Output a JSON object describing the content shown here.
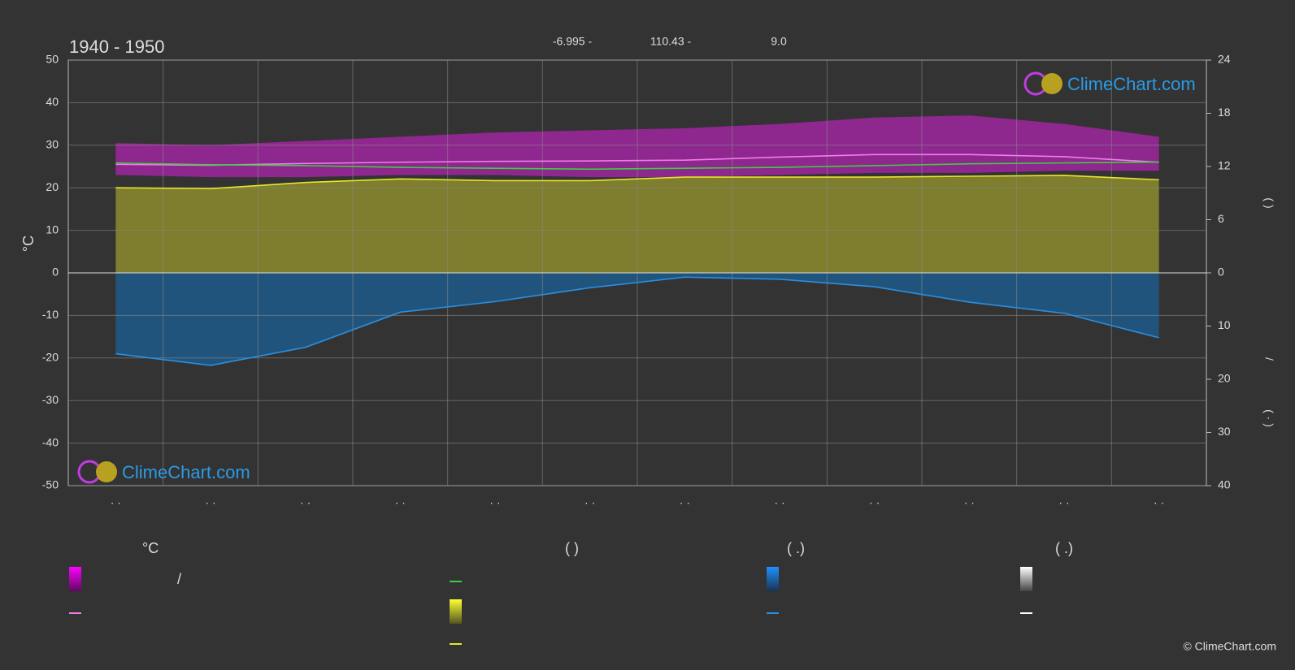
{
  "header": {
    "title": "1940 - 1950",
    "lat": "-6.995 -",
    "lon": "110.43 -",
    "elev": "9.0"
  },
  "chart_data": {
    "type": "line",
    "ylabel": "°C",
    "y2labels": [
      "(  )",
      "/",
      "( · )"
    ],
    "categories": [
      "· ·",
      "· ·",
      "· ·",
      "· ·",
      "· ·",
      "· ·",
      "· ·",
      "· ·",
      "· ·",
      "· ·",
      "· ·",
      "· ·"
    ],
    "ylim": [
      -50,
      50
    ],
    "yticks": [
      50,
      40,
      30,
      20,
      10,
      0,
      -10,
      -20,
      -30,
      -40,
      -50
    ],
    "y2lim": [
      0,
      24
    ],
    "y2ticks": [
      24,
      18,
      12,
      6,
      0
    ],
    "y3lim": [
      0,
      40
    ],
    "y3ticks": [
      10,
      20,
      30,
      40
    ],
    "grid": true,
    "temp_band": {
      "color": "#d81ed8",
      "high": [
        30.5,
        30,
        31,
        32,
        33,
        33.5,
        34,
        35,
        36.5,
        37,
        35,
        32
      ],
      "low": [
        23,
        22.5,
        22.5,
        23,
        23,
        22.5,
        22.5,
        23,
        23.5,
        23.5,
        24,
        24
      ]
    },
    "series": [
      {
        "color": "#f07cf0",
        "axis": "y",
        "values": [
          25.5,
          25.3,
          25.7,
          26,
          26.2,
          26.3,
          26.5,
          27.2,
          27.8,
          27.8,
          27.3,
          26
        ]
      },
      {
        "color": "#3ecf3e",
        "axis": "y2",
        "values": [
          12.4,
          12.2,
          12.1,
          11.9,
          11.8,
          11.7,
          11.8,
          11.9,
          12.1,
          12.3,
          12.4,
          12.5
        ]
      },
      {
        "color": "#e6e62a",
        "axis": "y2",
        "fill": "#8c8c2e",
        "values": [
          9.6,
          9.5,
          10.2,
          10.6,
          10.4,
          10.4,
          10.8,
          10.8,
          10.8,
          10.9,
          11.0,
          10.5
        ]
      },
      {
        "color": "#2a8fe0",
        "axis": "y3",
        "fill": "#1f5b8a",
        "values": [
          15.2,
          17.4,
          14.0,
          7.4,
          5.4,
          2.8,
          0.8,
          1.2,
          2.6,
          5.5,
          7.6,
          12.2
        ]
      }
    ]
  },
  "legend": {
    "heads": [
      "°C",
      "(          )",
      "(   .)",
      "(   .)"
    ],
    "slash": "/"
  },
  "watermark": "ClimeChart.com",
  "copyright": "© ClimeChart.com"
}
